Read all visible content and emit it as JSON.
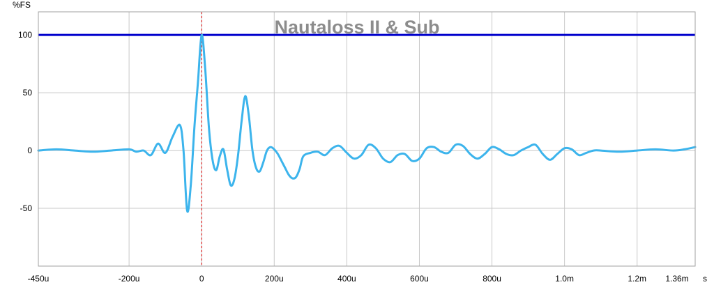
{
  "chart_data": {
    "type": "line",
    "title": "Nautaloss II & Sub",
    "ylabel": "%FS",
    "xunit": "s",
    "xlim": [
      -0.00045,
      0.00136
    ],
    "ylim": [
      -100,
      120
    ],
    "grid": true,
    "x_ticks": [
      {
        "value": -0.00045,
        "label": "-450u"
      },
      {
        "value": -0.0002,
        "label": "-200u"
      },
      {
        "value": 0,
        "label": "0"
      },
      {
        "value": 0.0002,
        "label": "200u"
      },
      {
        "value": 0.0004,
        "label": "400u"
      },
      {
        "value": 0.0006,
        "label": "600u"
      },
      {
        "value": 0.0008,
        "label": "800u"
      },
      {
        "value": 0.001,
        "label": "1.0m"
      },
      {
        "value": 0.0012,
        "label": "1.2m"
      },
      {
        "value": 0.00136,
        "label": "1.36m"
      }
    ],
    "y_ticks": [
      {
        "value": 100,
        "label": "100"
      },
      {
        "value": 50,
        "label": "50"
      },
      {
        "value": 0,
        "label": "0"
      },
      {
        "value": -50,
        "label": "-50"
      }
    ],
    "reference_lines": [
      {
        "orientation": "horizontal",
        "value": 100,
        "color": "#0000cc"
      },
      {
        "orientation": "vertical",
        "value": 0,
        "color": "#e00000",
        "style": "dashed"
      }
    ],
    "series": [
      {
        "color": "#3cb4ec",
        "x": [
          -0.00045,
          -0.0004,
          -0.00035,
          -0.0003,
          -0.00025,
          -0.0002,
          -0.00018,
          -0.00016,
          -0.00014,
          -0.00012,
          -0.0001,
          -8e-05,
          -6e-05,
          -5e-05,
          -4e-05,
          -3e-05,
          -2e-05,
          -1e-05,
          0,
          1e-05,
          2e-05,
          3e-05,
          4e-05,
          5e-05,
          6e-05,
          7e-05,
          8e-05,
          9e-05,
          0.0001,
          0.00011,
          0.00012,
          0.00013,
          0.00014,
          0.00015,
          0.00016,
          0.00017,
          0.00018,
          0.00019,
          0.0002,
          0.00021,
          0.00022,
          0.00023,
          0.00024,
          0.00025,
          0.00026,
          0.00027,
          0.00028,
          0.0003,
          0.00032,
          0.00034,
          0.00036,
          0.00038,
          0.0004,
          0.00042,
          0.00044,
          0.00046,
          0.00048,
          0.0005,
          0.00052,
          0.00054,
          0.00056,
          0.00058,
          0.0006,
          0.00062,
          0.00064,
          0.00066,
          0.00068,
          0.0007,
          0.00072,
          0.00074,
          0.00076,
          0.00078,
          0.0008,
          0.00082,
          0.00084,
          0.00086,
          0.00088,
          0.0009,
          0.00092,
          0.00094,
          0.00096,
          0.00098,
          0.001,
          0.00102,
          0.00104,
          0.00106,
          0.00108,
          0.0011,
          0.00115,
          0.0012,
          0.00125,
          0.0013,
          0.00133,
          0.00136
        ],
        "y": [
          0,
          1,
          0,
          -1,
          0,
          1,
          -1,
          0,
          -4,
          6,
          -2,
          12,
          22,
          0,
          -52,
          -30,
          20,
          60,
          100,
          70,
          20,
          -8,
          -17,
          -5,
          1,
          -16,
          -30,
          -25,
          -5,
          25,
          47,
          30,
          0,
          -15,
          -18,
          -10,
          0,
          3,
          1,
          -3,
          -9,
          -15,
          -21,
          -24,
          -23,
          -16,
          -5,
          -2,
          -1,
          -4,
          2,
          4,
          -2,
          -7,
          -4,
          5,
          2,
          -7,
          -10,
          -4,
          -3,
          -9,
          -7,
          2,
          3,
          -1,
          -2,
          5,
          4,
          -3,
          -7,
          -3,
          3,
          1,
          -3,
          -4,
          0,
          3,
          5,
          -3,
          -8,
          -3,
          2,
          1,
          -4,
          -2,
          0,
          0,
          -1,
          0,
          1,
          0,
          1,
          3
        ]
      }
    ]
  }
}
